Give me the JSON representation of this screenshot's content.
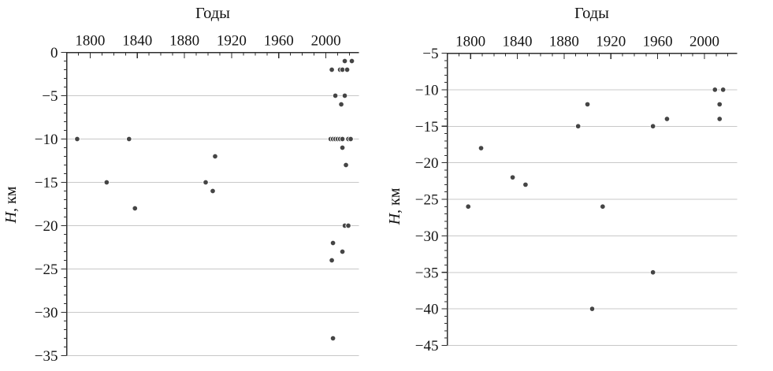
{
  "page": {
    "background": "#ffffff"
  },
  "colors": {
    "axis": "#2e2e2e",
    "grid": "#c8c8c8",
    "dot_fill": "#454545",
    "dot_edge": "#ffffff",
    "text": "#151515"
  },
  "chart_data": [
    {
      "type": "scatter",
      "panel": "left",
      "title": "Годы",
      "xlabel": "Годы",
      "ylabel": "H, км",
      "ylabel_italic": "H",
      "ylabel_rest": ", км",
      "x_axis_position": "top",
      "grid": "horizontal",
      "legend": "none",
      "xlim": [
        1780,
        2028
      ],
      "ylim": [
        -35,
        0
      ],
      "xticks": [
        1800,
        1840,
        1880,
        1920,
        1960,
        2000
      ],
      "xtick_minor_step": 10,
      "yticks": [
        0,
        -5,
        -10,
        -15,
        -20,
        -25,
        -30,
        -35
      ],
      "ytick_minor_step": 1,
      "points": [
        [
          1789,
          -10
        ],
        [
          1814,
          -15
        ],
        [
          1833,
          -10
        ],
        [
          1838,
          -18
        ],
        [
          1898,
          -15
        ],
        [
          1904,
          -16
        ],
        [
          1906,
          -12
        ],
        [
          2016,
          -1
        ],
        [
          2022,
          -1
        ],
        [
          2005,
          -2
        ],
        [
          2012,
          -2
        ],
        [
          2014,
          -2
        ],
        [
          2018,
          -2
        ],
        [
          2008,
          -5
        ],
        [
          2016,
          -5
        ],
        [
          2013,
          -6
        ],
        [
          2004,
          -10
        ],
        [
          2006,
          -10
        ],
        [
          2008,
          -10
        ],
        [
          2010,
          -10
        ],
        [
          2012,
          -10
        ],
        [
          2014,
          -10
        ],
        [
          2019,
          -10
        ],
        [
          2021,
          -10
        ],
        [
          2014,
          -11
        ],
        [
          2017,
          -13
        ],
        [
          2016,
          -20
        ],
        [
          2019,
          -20
        ],
        [
          2006,
          -22
        ],
        [
          2014,
          -23
        ],
        [
          2005,
          -24
        ],
        [
          2006,
          -33
        ]
      ]
    },
    {
      "type": "scatter",
      "panel": "right",
      "title": "Годы",
      "xlabel": "Годы",
      "ylabel": "H, км",
      "ylabel_italic": "H",
      "ylabel_rest": ", км",
      "x_axis_position": "top",
      "grid": "horizontal",
      "legend": "none",
      "xlim": [
        1780,
        2028
      ],
      "ylim": [
        -45,
        -5
      ],
      "xticks": [
        1800,
        1840,
        1880,
        1920,
        1960,
        2000
      ],
      "xtick_minor_step": 10,
      "yticks": [
        -5,
        -10,
        -15,
        -20,
        -25,
        -30,
        -35,
        -40,
        -45
      ],
      "ytick_minor_step": 1,
      "points": [
        [
          1798,
          -26
        ],
        [
          1809,
          -18
        ],
        [
          1836,
          -22
        ],
        [
          1847,
          -23
        ],
        [
          1892,
          -15
        ],
        [
          1900,
          -12
        ],
        [
          1904,
          -40
        ],
        [
          1913,
          -26
        ],
        [
          1956,
          -15
        ],
        [
          1956,
          -35
        ],
        [
          1968,
          -14
        ],
        [
          2009,
          -10
        ],
        [
          2016,
          -10
        ],
        [
          2013,
          -12
        ],
        [
          2013,
          -14
        ]
      ]
    }
  ]
}
